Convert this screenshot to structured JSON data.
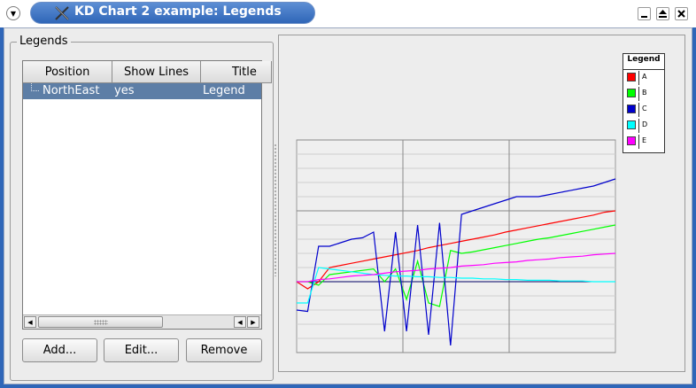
{
  "window": {
    "title": "KD Chart 2 example: Legends"
  },
  "legends_group": {
    "label": "Legends",
    "columns": [
      "Position",
      "Show Lines",
      "Title"
    ],
    "rows": [
      {
        "position": "NorthEast",
        "show_lines": "yes",
        "title": "Legend"
      }
    ],
    "buttons": {
      "add": "Add...",
      "edit": "Edit...",
      "remove": "Remove"
    }
  },
  "chart_data": {
    "type": "line",
    "x": [
      1,
      2,
      3,
      4,
      5,
      6,
      7,
      8,
      9,
      10,
      11,
      12,
      13,
      14,
      15,
      16,
      17,
      18,
      19,
      20,
      21,
      22,
      23,
      24,
      25,
      26,
      27,
      28,
      29,
      30
    ],
    "ylim": [
      -10,
      20
    ],
    "grid": true,
    "legend": {
      "title": "Legend",
      "position": "top-right"
    },
    "series": [
      {
        "name": "A",
        "color": "#ff0000",
        "values": [
          0.0,
          -1.0,
          0.0,
          2.0,
          2.3,
          2.6,
          2.9,
          3.2,
          3.5,
          3.8,
          4.1,
          4.4,
          4.8,
          5.1,
          5.4,
          5.7,
          6.0,
          6.3,
          6.6,
          7.0,
          7.3,
          7.6,
          7.9,
          8.2,
          8.5,
          8.8,
          9.1,
          9.4,
          9.8,
          10.0
        ]
      },
      {
        "name": "B",
        "color": "#00ff00",
        "values": [
          0.0,
          0.0,
          -0.5,
          1.0,
          1.2,
          1.4,
          1.6,
          1.8,
          0.0,
          1.8,
          -2.5,
          2.9,
          -3.0,
          -3.5,
          4.4,
          4.0,
          4.2,
          4.5,
          4.8,
          5.1,
          5.4,
          5.7,
          6.0,
          6.2,
          6.5,
          6.8,
          7.1,
          7.4,
          7.7,
          8.0
        ]
      },
      {
        "name": "C",
        "color": "#0000cc",
        "values": [
          -4.0,
          -4.2,
          5.0,
          5.0,
          5.5,
          6.0,
          6.2,
          7.0,
          -7.0,
          7.0,
          -7.0,
          8.0,
          -7.5,
          8.3,
          -9.0,
          9.5,
          10.0,
          10.5,
          11.0,
          11.5,
          12.0,
          12.0,
          12.0,
          12.3,
          12.6,
          12.9,
          13.2,
          13.5,
          14.0,
          14.5
        ]
      },
      {
        "name": "D",
        "color": "#00ffff",
        "values": [
          -3.0,
          -3.0,
          2.0,
          1.8,
          1.6,
          1.4,
          1.2,
          1.0,
          0.9,
          0.8,
          0.8,
          0.7,
          0.7,
          0.6,
          0.6,
          0.5,
          0.5,
          0.4,
          0.4,
          0.3,
          0.3,
          0.2,
          0.2,
          0.2,
          0.1,
          0.1,
          0.1,
          0.0,
          0.0,
          0.0
        ]
      },
      {
        "name": "E",
        "color": "#ff00ff",
        "values": [
          0.0,
          0.0,
          0.3,
          0.4,
          0.6,
          0.8,
          0.9,
          1.0,
          1.2,
          1.4,
          1.5,
          1.6,
          1.8,
          1.9,
          2.0,
          2.2,
          2.3,
          2.4,
          2.6,
          2.7,
          2.8,
          3.0,
          3.1,
          3.2,
          3.4,
          3.5,
          3.6,
          3.8,
          3.9,
          4.0
        ]
      }
    ]
  }
}
